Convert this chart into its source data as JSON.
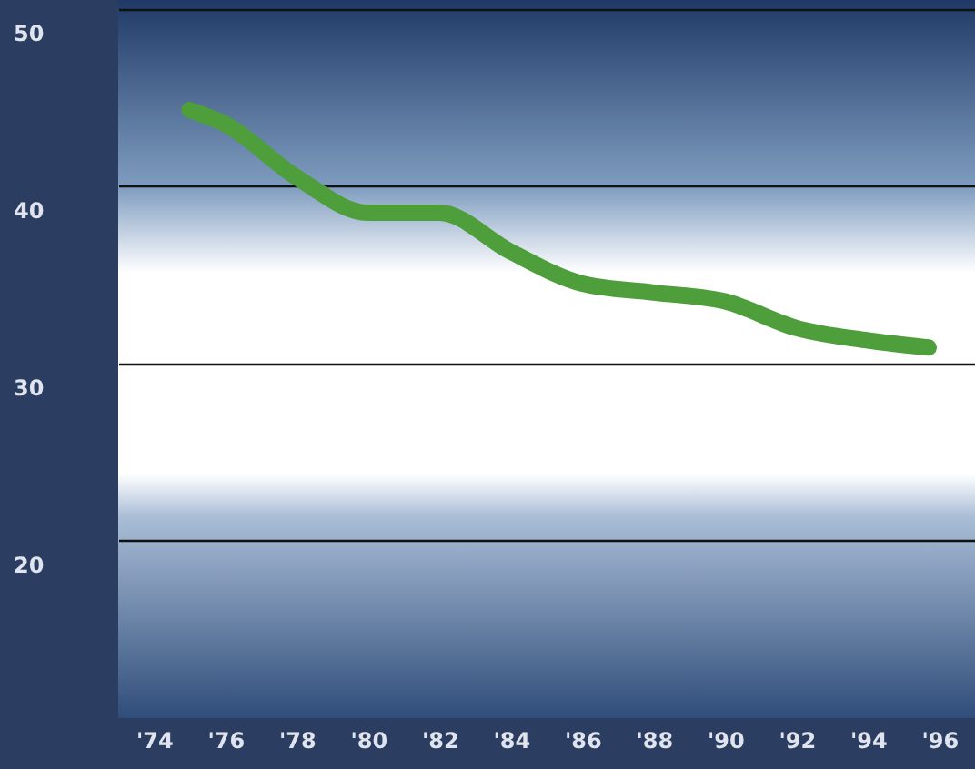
{
  "chart_data": {
    "type": "line",
    "x": [
      1975,
      1976,
      1978,
      1980,
      1982,
      1984,
      1986,
      1988,
      1990,
      1992,
      1994,
      1995.7
    ],
    "series": [
      {
        "color": "#4e9e3c",
        "values": [
          44.3,
          43.5,
          40.5,
          38.5,
          38.5,
          36.3,
          34.5,
          34.0,
          33.5,
          32.0,
          31.3,
          30.9
        ]
      }
    ],
    "xlim": [
      1973,
      1997
    ],
    "xticks": [
      {
        "value": 1974,
        "label": "'74"
      },
      {
        "value": 1976,
        "label": "'76"
      },
      {
        "value": 1978,
        "label": "'78"
      },
      {
        "value": 1980,
        "label": "'80"
      },
      {
        "value": 1982,
        "label": "'82"
      },
      {
        "value": 1984,
        "label": "'84"
      },
      {
        "value": 1986,
        "label": "'86"
      },
      {
        "value": 1988,
        "label": "'88"
      },
      {
        "value": 1990,
        "label": "'90"
      },
      {
        "value": 1992,
        "label": "'92"
      },
      {
        "value": 1994,
        "label": "'94"
      },
      {
        "value": 1996,
        "label": "'96"
      }
    ],
    "ylim": [
      10,
      50.5
    ],
    "yticks": [
      20,
      30,
      40,
      50
    ],
    "grid": "y",
    "marker": "none",
    "line_style": "solid"
  }
}
